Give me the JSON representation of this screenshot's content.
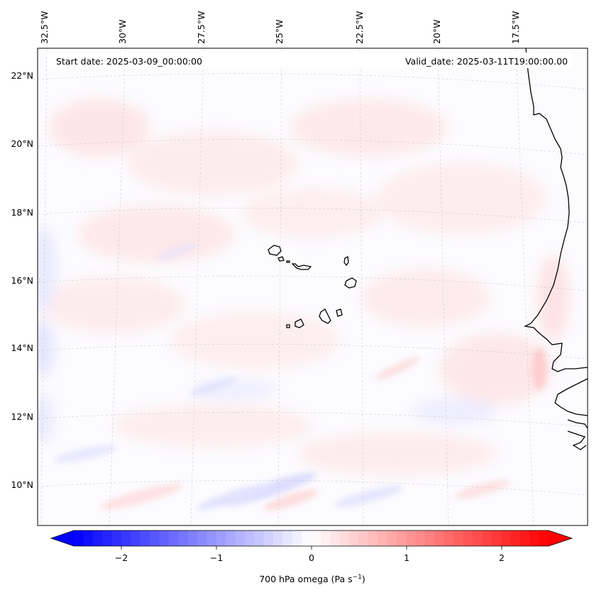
{
  "map": {
    "start_date": "Start date: 2025-03-09_00:00:00",
    "valid_date": "Valid_date: 2025-03-11T19:00:00.00",
    "lon_labels": [
      "32.5°W",
      "30°W",
      "27.5°W",
      "25°W",
      "22.5°W",
      "20°W",
      "17.5°W"
    ],
    "lat_labels": [
      "22°N",
      "20°N",
      "18°N",
      "16°N",
      "14°N",
      "12°N",
      "10°N"
    ],
    "extent": {
      "lon_min": -33,
      "lon_max": -16,
      "lat_min": 9,
      "lat_max": 23
    },
    "field": "700 hPa omega",
    "colormap": "bwr",
    "coastline_color": "#000000"
  },
  "colorbar": {
    "label": "700 hPa omega (Pa s",
    "label_sup": "−1",
    "label_tail": ")",
    "ticks": [
      "−2",
      "−1",
      "0",
      "1",
      "2"
    ],
    "tick_values": [
      -2,
      -1,
      0,
      1,
      2
    ],
    "vmin": -2.5,
    "vmax": 2.5,
    "levels": 50,
    "extend": "both",
    "colors": {
      "negative": "#0000ff",
      "zero": "#ffffff",
      "positive": "#ff0000"
    }
  }
}
